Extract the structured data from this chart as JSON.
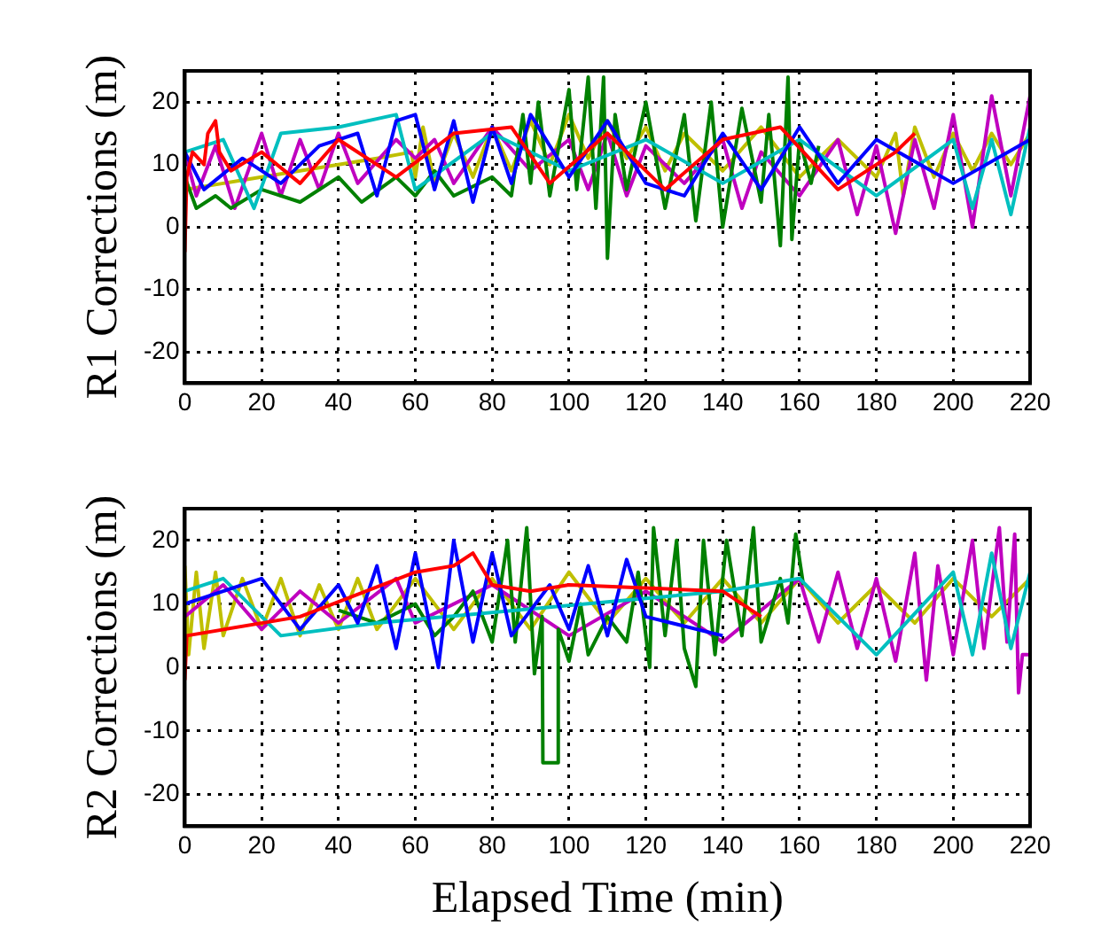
{
  "chart_data": [
    {
      "type": "line",
      "ylabel": "R1 Corrections (m)",
      "xlim": [
        0,
        220
      ],
      "xticks": [
        0,
        20,
        40,
        60,
        80,
        100,
        120,
        140,
        160,
        180,
        200,
        220
      ],
      "ylim": [
        -25,
        25
      ],
      "yticks": [
        -20,
        -10,
        0,
        10,
        20
      ],
      "grid": true,
      "line_style": "solid",
      "series": [
        {
          "color": "#ff0000",
          "x": [
            0,
            0.5,
            2,
            5,
            6,
            8,
            9,
            12,
            20,
            30,
            40,
            55,
            70,
            85,
            95,
            110,
            125,
            140,
            155,
            170,
            185,
            190
          ],
          "values": [
            -4,
            8,
            12,
            10,
            15,
            17,
            12,
            9,
            12,
            7,
            14,
            8,
            15,
            16,
            7,
            15,
            6,
            14,
            16,
            6,
            12,
            15
          ]
        },
        {
          "color": "#0000ff",
          "x": [
            0,
            5,
            15,
            25,
            35,
            45,
            50,
            55,
            60,
            65,
            70,
            75,
            80,
            85,
            90,
            100,
            110,
            120,
            130,
            140,
            150,
            160,
            170,
            180,
            200,
            220
          ],
          "values": [
            12,
            6,
            11,
            7,
            13,
            15,
            5,
            17,
            18,
            6,
            17,
            4,
            16,
            7,
            18,
            8,
            17,
            7,
            5,
            15,
            6,
            16,
            7,
            14,
            7,
            14
          ]
        },
        {
          "color": "#00bfbf",
          "x": [
            0,
            10,
            18,
            25,
            40,
            55,
            60,
            80,
            100,
            120,
            140,
            160,
            180,
            200,
            205,
            210,
            215,
            220
          ],
          "values": [
            12,
            14,
            3,
            15,
            16,
            18,
            6,
            15,
            9,
            14,
            7,
            14,
            5,
            14,
            3,
            14,
            2,
            16
          ]
        },
        {
          "color": "#008000",
          "x": [
            0,
            3,
            8,
            12,
            20,
            30,
            40,
            46,
            55,
            60,
            65,
            70,
            80,
            85,
            88,
            90,
            92,
            95,
            100,
            102,
            105,
            107,
            109,
            110,
            112,
            115,
            120,
            125,
            130,
            133,
            137,
            140,
            145,
            150,
            152,
            155,
            157,
            158,
            160,
            163,
            165
          ],
          "values": [
            8,
            3,
            5,
            3,
            6,
            4,
            8,
            4,
            8,
            5,
            9,
            5,
            8,
            5,
            18,
            7,
            20,
            5,
            22,
            6,
            24,
            3,
            24,
            -5,
            18,
            6,
            20,
            3,
            18,
            1,
            20,
            0,
            19,
            4,
            18,
            -3,
            24,
            -2,
            14,
            7,
            13
          ]
        },
        {
          "color": "#bf00bf",
          "x": [
            0,
            3,
            8,
            13,
            20,
            25,
            30,
            35,
            40,
            45,
            55,
            60,
            65,
            70,
            80,
            90,
            100,
            105,
            110,
            115,
            120,
            130,
            140,
            145,
            150,
            160,
            170,
            175,
            180,
            185,
            190,
            195,
            200,
            205,
            210,
            215,
            220
          ],
          "values": [
            12,
            5,
            13,
            3,
            15,
            5,
            14,
            6,
            15,
            7,
            14,
            11,
            14,
            7,
            16,
            9,
            14,
            6,
            15,
            5,
            13,
            7,
            14,
            3,
            12,
            5,
            14,
            2,
            13,
            -1,
            14,
            3,
            18,
            0,
            21,
            5,
            21
          ]
        },
        {
          "color": "#bfbf00",
          "x": [
            0,
            10,
            20,
            30,
            40,
            50,
            59,
            60,
            62,
            65,
            70,
            75,
            80,
            85,
            90,
            95,
            100,
            105,
            110,
            115,
            120,
            125,
            130,
            140,
            150,
            160,
            170,
            180,
            185,
            187,
            190,
            195,
            200,
            205,
            210,
            215,
            220
          ],
          "values": [
            6,
            7,
            8,
            9,
            10,
            11,
            12,
            8,
            16,
            7,
            15,
            8,
            16,
            9,
            17,
            10,
            18,
            11,
            17,
            11,
            16,
            9,
            15,
            9,
            16,
            8,
            14,
            8,
            15,
            5,
            16,
            8,
            15,
            9,
            15,
            10,
            15
          ]
        }
      ]
    },
    {
      "type": "line",
      "ylabel": "R2 Corrections (m)",
      "xlabel": "Elapsed Time (min)",
      "xlim": [
        0,
        220
      ],
      "xticks": [
        0,
        20,
        40,
        60,
        80,
        100,
        120,
        140,
        160,
        180,
        200,
        220
      ],
      "ylim": [
        -25,
        25
      ],
      "yticks": [
        -20,
        -10,
        0,
        10,
        20
      ],
      "grid": true,
      "line_style": "solid",
      "series": [
        {
          "color": "#ff0000",
          "x": [
            0,
            0.5,
            30,
            60,
            70,
            75,
            80,
            90,
            100,
            140,
            150
          ],
          "values": [
            -2,
            5,
            8,
            15,
            16,
            18,
            13,
            12,
            13,
            12,
            8
          ]
        },
        {
          "color": "#0000ff",
          "x": [
            0,
            10,
            20,
            30,
            40,
            45,
            50,
            55,
            60,
            66,
            70,
            75,
            80,
            85,
            95,
            100,
            105,
            110,
            115,
            120,
            140
          ],
          "values": [
            10,
            12,
            14,
            6,
            13,
            7,
            16,
            3,
            18,
            0,
            20,
            4,
            18,
            5,
            13,
            6,
            16,
            5,
            17,
            8,
            5
          ]
        },
        {
          "color": "#00bfbf",
          "x": [
            0,
            10,
            25,
            50,
            140,
            160,
            180,
            200,
            205,
            210,
            215,
            220
          ],
          "values": [
            12,
            14,
            5,
            7,
            12,
            14,
            2,
            15,
            2,
            18,
            3,
            15
          ]
        },
        {
          "color": "#008000",
          "x": [
            40,
            50,
            60,
            65,
            70,
            75,
            80,
            84,
            86,
            89,
            91,
            93,
            93.2,
            97,
            97.2,
            100,
            103,
            105,
            110,
            115,
            118,
            121,
            122,
            125,
            128,
            130,
            133,
            135,
            138,
            141,
            145,
            148,
            150,
            155,
            157,
            159,
            161
          ],
          "values": [
            9,
            7,
            10,
            5,
            8,
            12,
            4,
            20,
            4,
            22,
            -1,
            8,
            -15,
            -15,
            6,
            1,
            10,
            2,
            8,
            4,
            15,
            0,
            22,
            5,
            20,
            3,
            -3,
            20,
            2,
            20,
            5,
            22,
            4,
            14,
            7,
            21,
            13
          ]
        },
        {
          "color": "#bf00bf",
          "x": [
            0,
            10,
            20,
            30,
            40,
            55,
            60,
            80,
            100,
            120,
            140,
            160,
            165,
            170,
            175,
            180,
            185,
            190,
            193,
            196,
            200,
            205,
            208,
            212,
            214,
            216,
            217,
            218,
            220
          ],
          "values": [
            8,
            13,
            6,
            12,
            7,
            14,
            7,
            13,
            5,
            12,
            4,
            14,
            4,
            15,
            3,
            14,
            1,
            18,
            -2,
            16,
            2,
            20,
            3,
            22,
            4,
            21,
            -4,
            2,
            2
          ]
        },
        {
          "color": "#bfbf00",
          "x": [
            0,
            1,
            3,
            5,
            8,
            10,
            15,
            20,
            25,
            30,
            35,
            40,
            45,
            50,
            60,
            70,
            80,
            90,
            100,
            110,
            120,
            130,
            140,
            150,
            160,
            170,
            180,
            190,
            200,
            210,
            220
          ],
          "values": [
            16,
            2,
            15,
            3,
            15,
            5,
            14,
            6,
            14,
            5,
            13,
            6,
            14,
            6,
            14,
            6,
            14,
            6,
            15,
            7,
            14,
            7,
            14,
            7,
            14,
            7,
            13,
            7,
            14,
            8,
            14
          ]
        }
      ]
    }
  ]
}
